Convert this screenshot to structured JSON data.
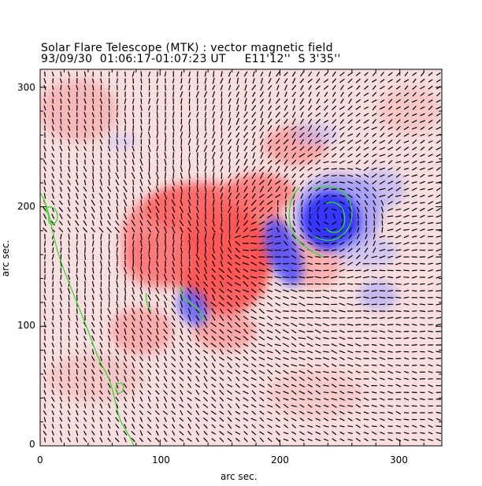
{
  "header": {
    "title": "Solar Flare Telescope (MTK) : vector magnetic field",
    "subtitle": "93/09/30  01:06:17-01:07:23 UT     E11'12''  S 3'35''"
  },
  "axes": {
    "xlabel": "arc sec.",
    "ylabel": "arc sec.",
    "xticks": [
      "0",
      "100",
      "200",
      "300"
    ],
    "yticks": [
      "0",
      "100",
      "200",
      "300"
    ],
    "xlim": [
      0,
      335
    ],
    "ylim": [
      0,
      315
    ]
  },
  "colors": {
    "positive": "#ff4040",
    "negative": "#2f2fff",
    "contour": "#33dd33",
    "vector": "#000000"
  }
}
